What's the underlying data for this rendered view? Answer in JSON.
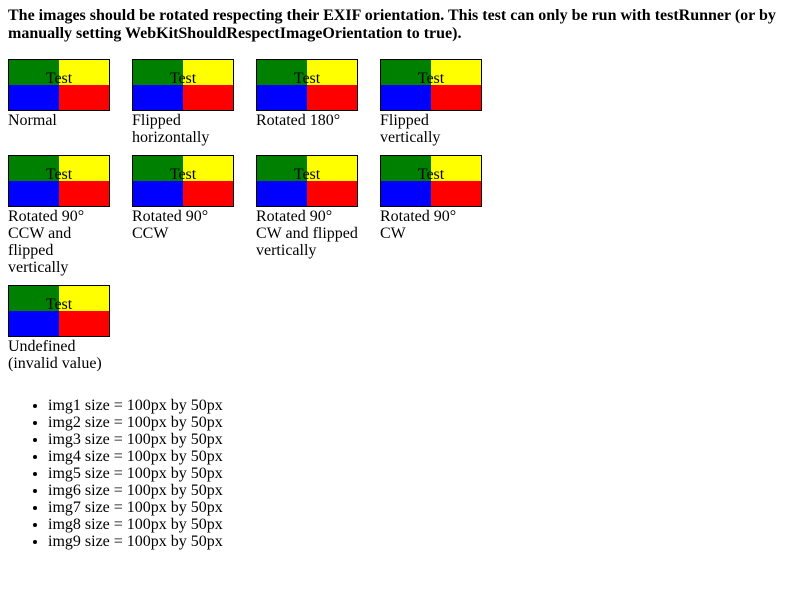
{
  "heading": "The images should be rotated respecting their EXIF orientation. This test can only be run with testRunner (or by manually setting WebKitShouldRespectImageOrientation to true).",
  "colors": {
    "top_left": "#008000",
    "top_right": "#ffff00",
    "bottom_left": "#0000ff",
    "bottom_right": "#ff0000"
  },
  "images": [
    {
      "text": "Test",
      "caption": "Normal"
    },
    {
      "text": "Test",
      "caption": "Flipped horizontally"
    },
    {
      "text": "Test",
      "caption": "Rotated 180°"
    },
    {
      "text": "Test",
      "caption": "Flipped vertically"
    },
    {
      "text": "Test",
      "caption": "Rotated 90° CCW and flipped vertically"
    },
    {
      "text": "Test",
      "caption": "Rotated 90° CCW"
    },
    {
      "text": "Test",
      "caption": "Rotated 90° CW and flipped vertically"
    },
    {
      "text": "Test",
      "caption": "Rotated 90° CW"
    },
    {
      "text": "Test",
      "caption": "Undefined (invalid value)"
    }
  ],
  "size_list": [
    "img1 size = 100px by 50px",
    "img2 size = 100px by 50px",
    "img3 size = 100px by 50px",
    "img4 size = 100px by 50px",
    "img5 size = 100px by 50px",
    "img6 size = 100px by 50px",
    "img7 size = 100px by 50px",
    "img8 size = 100px by 50px",
    "img9 size = 100px by 50px"
  ]
}
